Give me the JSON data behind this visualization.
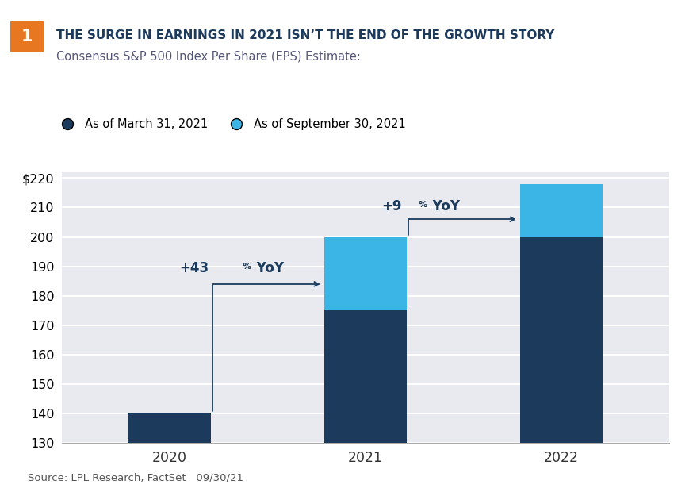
{
  "categories": [
    "2020",
    "2021",
    "2022"
  ],
  "dark_values": [
    140,
    175,
    200
  ],
  "light_values": [
    0,
    25,
    18
  ],
  "ylim": [
    130,
    222
  ],
  "yticks": [
    130,
    140,
    150,
    160,
    170,
    180,
    190,
    200,
    210,
    220
  ],
  "dark_color": "#1b3a5c",
  "light_color": "#3ab5e5",
  "chart_bg_color": "#e8eaf0",
  "fig_bg_color": "#ffffff",
  "title_main": "THE SURGE IN EARNINGS IN 2021 ISN’T THE END OF THE GROWTH STORY",
  "title_sub": "Consensus S&P 500 Index Per Share (EPS) Estimate:",
  "legend_dark": "As of March 31, 2021",
  "legend_light": "As of September 30, 2021",
  "source_text": "Source: LPL Research, FactSet   09/30/21",
  "annotation1_text": "+43% YoY",
  "annotation2_text": "+9% YoY",
  "orange_box_color": "#e87722",
  "number_box": "1",
  "bar_width": 0.42
}
